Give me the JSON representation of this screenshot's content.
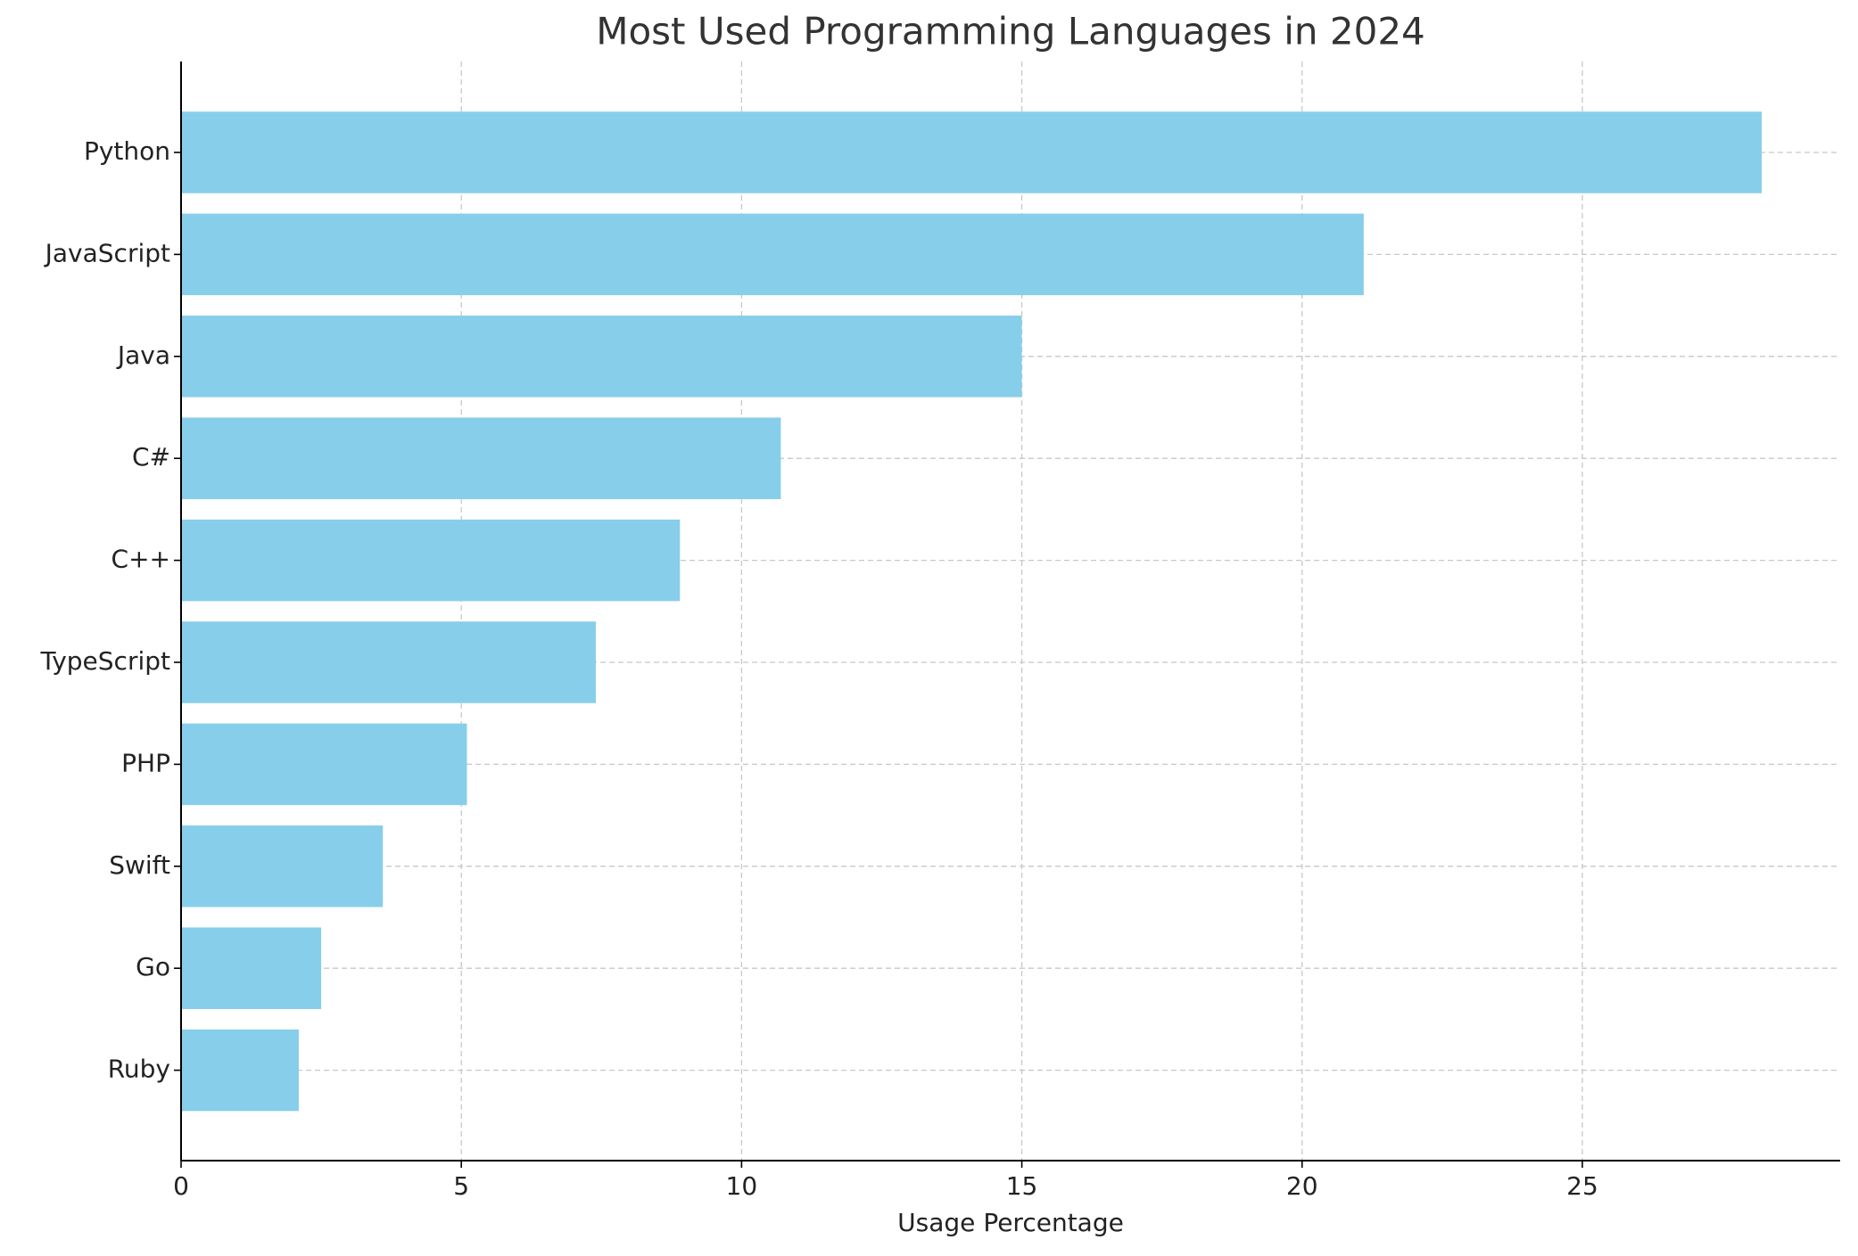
{
  "chart_data": {
    "type": "bar",
    "orientation": "horizontal",
    "title": "Most Used Programming Languages in 2024",
    "x_label": "Usage Percentage",
    "categories": [
      "Python",
      "JavaScript",
      "Java",
      "C#",
      "C++",
      "TypeScript",
      "PHP",
      "Swift",
      "Go",
      "Ruby"
    ],
    "values": [
      28.2,
      21.1,
      15.0,
      10.7,
      8.9,
      7.4,
      5.1,
      3.6,
      2.5,
      2.1
    ],
    "color": "#87ceeb",
    "xlim": [
      0,
      29.6
    ],
    "xticks": [
      0,
      5,
      10,
      15,
      20,
      25
    ],
    "grid": true
  }
}
